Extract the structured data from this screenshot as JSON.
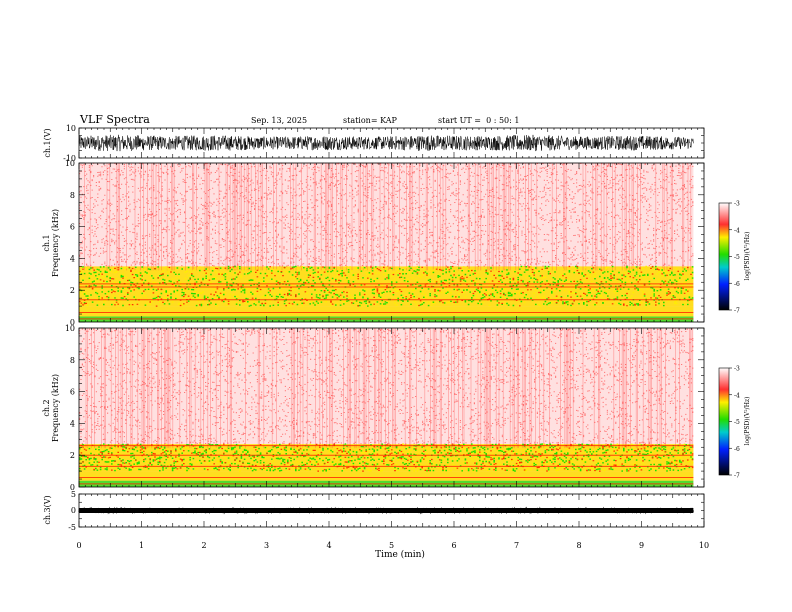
{
  "chart_data": {
    "type": "heatmap",
    "header": {
      "title": "VLF Spectra",
      "date": "Sep. 13, 2025",
      "station": "station= KAP",
      "start": "start UT =  0 : 50: 1"
    },
    "x_axis": {
      "label": "Time (min)",
      "range": [
        0,
        10
      ],
      "ticks": [
        "0",
        "1",
        "2",
        "3",
        "4",
        "5",
        "6",
        "7",
        "8",
        "9",
        "10"
      ],
      "data_end": 9.83
    },
    "panels": [
      {
        "id": "ch1-waveform",
        "kind": "waveform",
        "ylabel": "ch.1(V)",
        "ylim": [
          -10,
          10
        ],
        "yticks": [
          "10",
          "-10"
        ],
        "amplitude": 5.5
      },
      {
        "id": "ch1-spectrogram",
        "kind": "spectrogram",
        "ylabel_line1": "ch.1",
        "ylabel_line2": "Frequency (kHz)",
        "ylim": [
          0,
          10
        ],
        "yticks": [
          "0",
          "2",
          "4",
          "6",
          "8",
          "10"
        ],
        "bands": [
          {
            "from": 0.0,
            "to": 0.35,
            "level": -5.0
          },
          {
            "from": 0.35,
            "to": 1.0,
            "level": -4.6
          },
          {
            "from": 1.0,
            "to": 3.5,
            "level": -4.8
          },
          {
            "from": 3.5,
            "to": 10.0,
            "level": -3.2
          }
        ],
        "lines_khz": [
          2.2,
          2.4,
          1.4,
          0.6,
          0.2
        ],
        "colorbar": {
          "label": "log(PSD)(V²/Hz)",
          "range": [
            -7,
            -3
          ],
          "ticks": [
            "-3",
            "-4",
            "-5",
            "-6",
            "-7"
          ]
        }
      },
      {
        "id": "ch2-spectrogram",
        "kind": "spectrogram",
        "ylabel_line1": "ch.2",
        "ylabel_line2": "Frequency (kHz)",
        "ylim": [
          0,
          10
        ],
        "yticks": [
          "0",
          "2",
          "4",
          "6",
          "8",
          "10"
        ],
        "bands": [
          {
            "from": 0.0,
            "to": 0.4,
            "level": -5.0
          },
          {
            "from": 0.4,
            "to": 1.0,
            "level": -4.7
          },
          {
            "from": 1.0,
            "to": 2.7,
            "level": -4.9
          },
          {
            "from": 2.7,
            "to": 10.0,
            "level": -3.2
          }
        ],
        "lines_khz": [
          2.0,
          2.6,
          1.3,
          0.6,
          0.2
        ],
        "colorbar": {
          "label": "log(PSD)(V²/Hz)",
          "range": [
            -7,
            -3
          ],
          "ticks": [
            "-3",
            "-4",
            "-5",
            "-6",
            "-7"
          ]
        }
      },
      {
        "id": "ch3-waveform",
        "kind": "waveform",
        "ylabel": "ch.3(V)",
        "ylim": [
          -5,
          5
        ],
        "yticks": [
          "5",
          "0",
          "-5"
        ],
        "amplitude": 0.6
      }
    ]
  }
}
